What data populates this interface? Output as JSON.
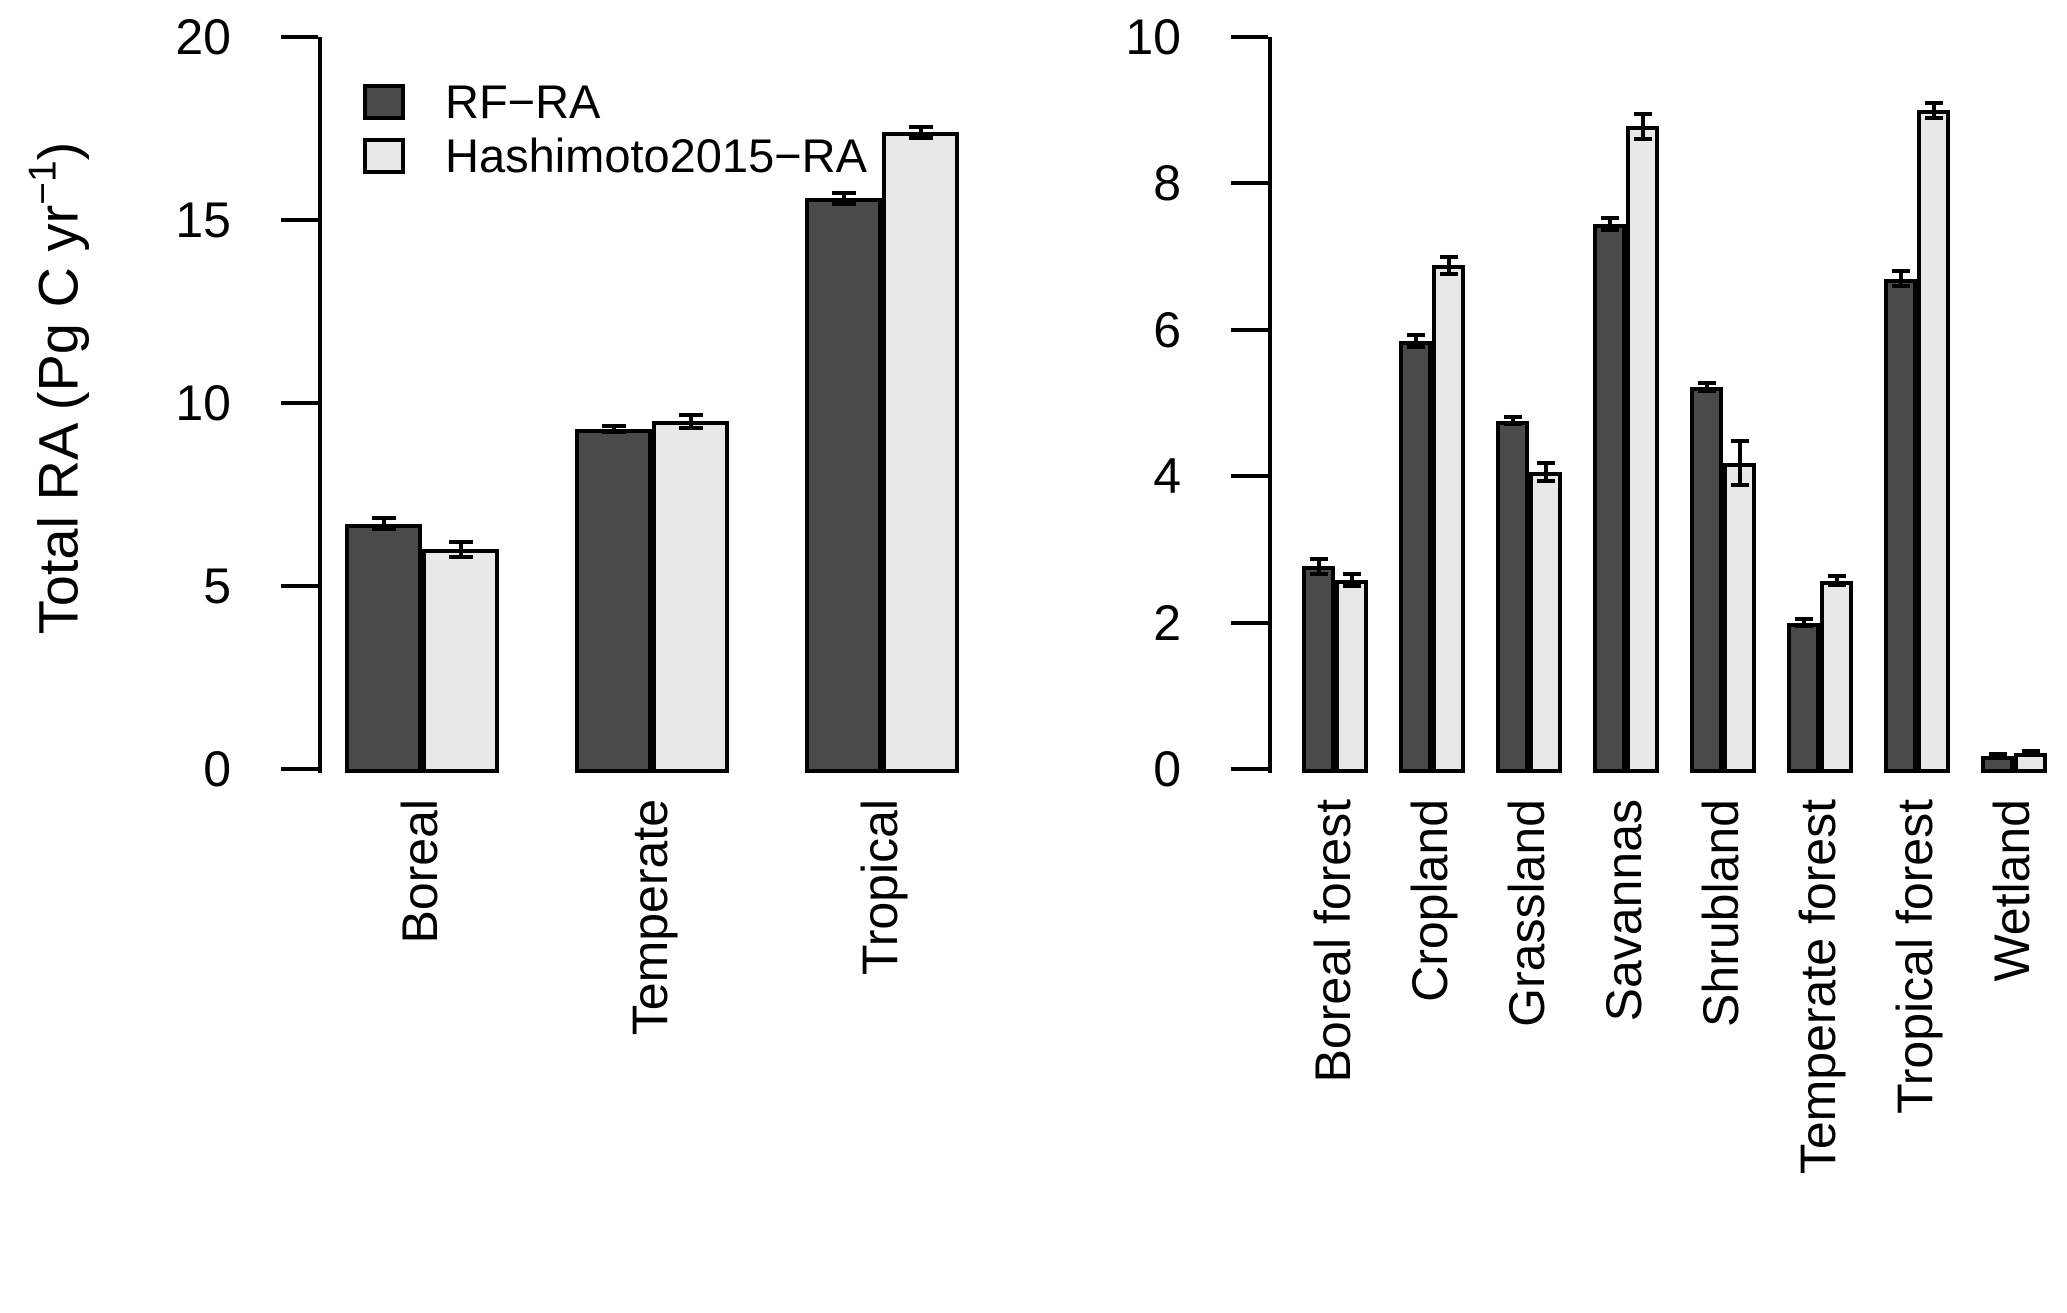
{
  "figure": {
    "background": "#ffffff",
    "bar_border_color": "#000000",
    "text_color": "#000000",
    "series_colors": {
      "rf_ra": "#4a4a4a",
      "hashimoto2015_ra": "#e8e8e8"
    }
  },
  "ylabel": {
    "pre": "Total RA (Pg C yr",
    "sup": "−1",
    "post": ")"
  },
  "legend": {
    "items": [
      {
        "label": "RF−RA",
        "color": "#4a4a4a"
      },
      {
        "label": "Hashimoto2015−RA",
        "color": "#e8e8e8"
      }
    ]
  },
  "chart_data": [
    {
      "type": "bar",
      "title": "",
      "xlabel": "",
      "ylabel": "Total RA (Pg C yr−1)",
      "ylim": [
        0,
        20
      ],
      "yticks": [
        0,
        5,
        10,
        15,
        20
      ],
      "grid": false,
      "legend_position": "top-left-inside",
      "categories": [
        "Boreal",
        "Temperate",
        "Tropical"
      ],
      "series": [
        {
          "name": "RF−RA",
          "values": [
            6.7,
            9.3,
            15.6
          ],
          "errors": [
            0.15,
            0.08,
            0.15
          ]
        },
        {
          "name": "Hashimoto2015−RA",
          "values": [
            6.0,
            9.5,
            17.4
          ],
          "errors": [
            0.2,
            0.17,
            0.15
          ]
        }
      ]
    },
    {
      "type": "bar",
      "title": "",
      "xlabel": "",
      "ylabel": "",
      "ylim": [
        0,
        10
      ],
      "yticks": [
        0,
        2,
        4,
        6,
        8,
        10
      ],
      "grid": false,
      "legend_position": "none",
      "categories": [
        "Boreal forest",
        "Cropland",
        "Grassland",
        "Savannas",
        "Shrubland",
        "Temperate forest",
        "Tropical forest",
        "Wetland"
      ],
      "series": [
        {
          "name": "RF−RA",
          "values": [
            2.77,
            5.85,
            4.76,
            7.45,
            5.22,
            2.0,
            6.7,
            0.18
          ],
          "errors": [
            0.1,
            0.08,
            0.05,
            0.08,
            0.05,
            0.05,
            0.1,
            0.03
          ]
        },
        {
          "name": "Hashimoto2015−RA",
          "values": [
            2.58,
            6.88,
            4.06,
            8.78,
            4.18,
            2.57,
            9.0,
            0.22
          ],
          "errors": [
            0.08,
            0.12,
            0.12,
            0.17,
            0.3,
            0.06,
            0.1,
            0.03
          ]
        }
      ]
    }
  ]
}
